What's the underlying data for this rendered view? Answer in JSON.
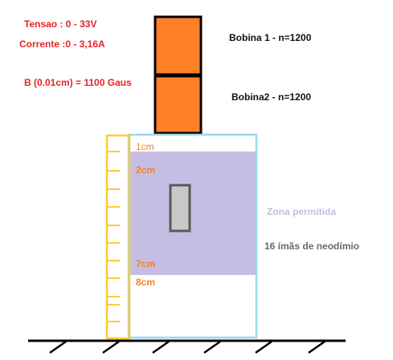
{
  "specs": {
    "voltage": "Tensao : 0 - 33V",
    "current": "Corrente :0 - 3,16A",
    "field": "B (0.01cm) = 1100 Gaus"
  },
  "coils": {
    "coil1_label": "Bobina 1 - n=1200",
    "coil2_label": "Bobina2 - n=1200"
  },
  "ruler": {
    "mark_1cm": "1cm",
    "mark_2cm": "2cm",
    "mark_7cm": "7cm",
    "mark_8cm": "8cm"
  },
  "zone": {
    "label": "Zona permitida"
  },
  "magnets": {
    "label": "16 ímãs de neodímio"
  },
  "colors": {
    "coil_fill": "#ff8026",
    "zone_fill": "#c6bde4",
    "ruler_stroke": "#ffcb33",
    "box_stroke": "#99d9ea",
    "red_text": "#e8232a",
    "orange_text": "#f58320"
  }
}
